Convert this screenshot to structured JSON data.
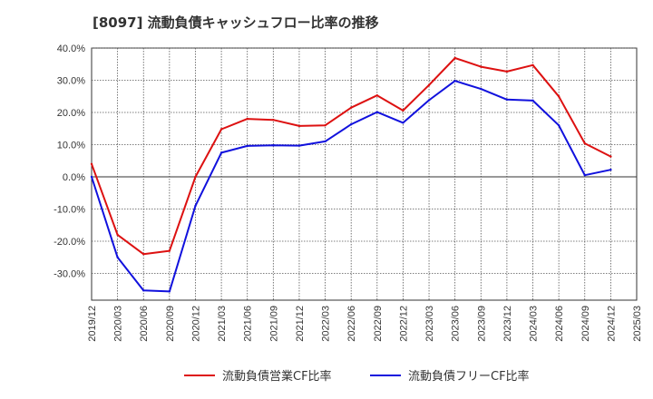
{
  "chart_data": {
    "type": "line",
    "title": "[8097]  流動負債キャッシュフロー比率の推移",
    "xlabel": "",
    "ylabel": "",
    "ylim": [
      -38,
      40
    ],
    "yticks": [
      40,
      30,
      20,
      10,
      0,
      -10,
      -20,
      -30
    ],
    "ytick_labels": [
      "40.0%",
      "30.0%",
      "20.0%",
      "10.0%",
      "0.0%",
      "-10.0%",
      "-20.0%",
      "-30.0%"
    ],
    "xticks": [
      "2019/12",
      "2020/03",
      "2020/06",
      "2020/09",
      "2020/12",
      "2021/03",
      "2021/06",
      "2021/09",
      "2021/12",
      "2022/03",
      "2022/06",
      "2022/09",
      "2022/12",
      "2023/03",
      "2023/06",
      "2023/09",
      "2023/12",
      "2024/03",
      "2024/06",
      "2024/09",
      "2024/12",
      "2025/03"
    ],
    "x": [
      "2019/12",
      "2020/03",
      "2020/06",
      "2020/09",
      "2020/12",
      "2021/03",
      "2021/06",
      "2021/09",
      "2021/12",
      "2022/03",
      "2022/06",
      "2022/09",
      "2022/12",
      "2023/03",
      "2023/06",
      "2023/09",
      "2023/12",
      "2024/03",
      "2024/06",
      "2024/09",
      "2024/12"
    ],
    "grid": true,
    "legend_position": "bottom",
    "series": [
      {
        "name": "流動負債営業CF比率",
        "color": "#dd1111",
        "values": [
          4.0,
          -18.0,
          -24.0,
          -23.0,
          0.0,
          14.8,
          18.0,
          17.7,
          15.8,
          16.0,
          21.5,
          25.3,
          20.6,
          28.5,
          36.9,
          34.2,
          32.7,
          34.7,
          25.0,
          10.4,
          6.3
        ]
      },
      {
        "name": "流動負債フリーCF比率",
        "color": "#1111dd",
        "values": [
          0.0,
          -25.0,
          -35.3,
          -35.6,
          -9.0,
          7.5,
          9.6,
          9.8,
          9.7,
          11.0,
          16.3,
          20.1,
          16.8,
          23.8,
          29.8,
          27.3,
          24.0,
          23.7,
          16.0,
          0.5,
          2.2
        ]
      }
    ]
  }
}
